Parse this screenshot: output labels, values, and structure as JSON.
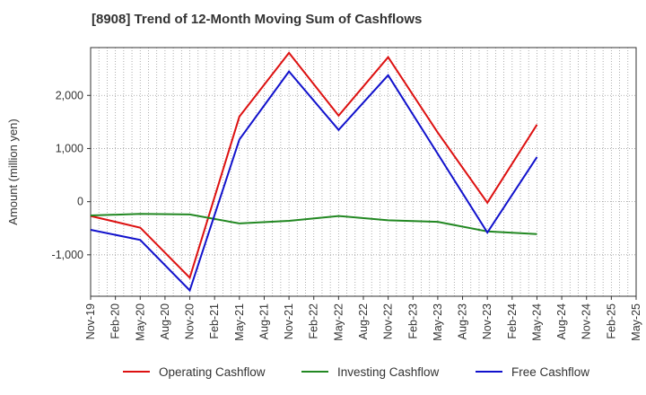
{
  "chart_data": {
    "type": "line",
    "title": "[8908]  Trend of 12-Month Moving Sum of Cashflows",
    "ylabel": "Amount (million yen)",
    "xlabel": "",
    "ylim": [
      -1780,
      2900
    ],
    "yticks": [
      -1000,
      0,
      1000,
      2000
    ],
    "ytick_labels": [
      "-1,000",
      "0",
      "1,000",
      "2,000"
    ],
    "x_labels": [
      "Nov-19",
      "Feb-20",
      "May-20",
      "Aug-20",
      "Nov-20",
      "Feb-21",
      "May-21",
      "Aug-21",
      "Nov-21",
      "Feb-22",
      "May-22",
      "Aug-22",
      "Nov-22",
      "Feb-23",
      "May-23",
      "Aug-23",
      "Nov-23",
      "Feb-24",
      "May-24",
      "Aug-24",
      "Nov-24",
      "Feb-25",
      "May-25"
    ],
    "grid": true,
    "legend_position": "bottom",
    "series": [
      {
        "name": "Operating Cashflow",
        "color": "#dd1111",
        "values": [
          -270,
          null,
          -490,
          null,
          -1430,
          null,
          1600,
          null,
          2800,
          null,
          1620,
          null,
          2720,
          null,
          1300,
          null,
          -20,
          null,
          1450
        ]
      },
      {
        "name": "Investing Cashflow",
        "color": "#228822",
        "values": [
          -260,
          null,
          -230,
          null,
          -240,
          null,
          -410,
          null,
          -360,
          null,
          -270,
          null,
          -350,
          null,
          -380,
          null,
          -560,
          null,
          -610
        ]
      },
      {
        "name": "Free Cashflow",
        "color": "#1111cc",
        "values": [
          -530,
          null,
          -720,
          null,
          -1670,
          null,
          1170,
          null,
          2450,
          null,
          1350,
          null,
          2380,
          null,
          900,
          null,
          -580,
          null,
          840
        ]
      }
    ]
  }
}
